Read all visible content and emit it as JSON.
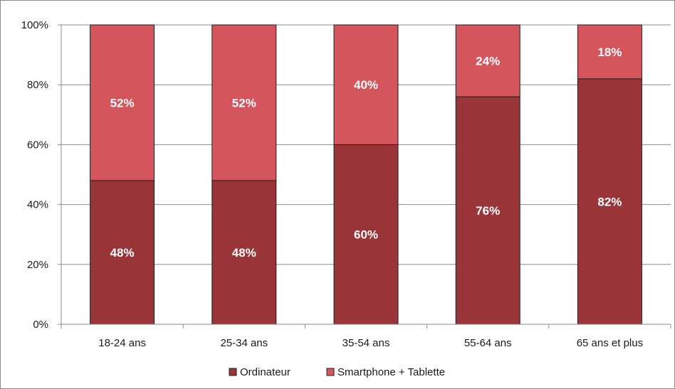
{
  "chart_data": {
    "type": "bar",
    "stacked": true,
    "categories": [
      "18-24 ans",
      "25-34 ans",
      "35-54 ans",
      "55-64 ans",
      "65 ans et plus"
    ],
    "series": [
      {
        "name": "Ordinateur",
        "values": [
          48,
          48,
          60,
          76,
          82
        ],
        "labels": [
          "48%",
          "48%",
          "60%",
          "76%",
          "82%"
        ],
        "color": "#993438"
      },
      {
        "name": "Smartphone + Tablette",
        "values": [
          52,
          52,
          40,
          24,
          18
        ],
        "labels": [
          "52%",
          "52%",
          "40%",
          "24%",
          "18%"
        ],
        "color": "#d4555c"
      }
    ],
    "y_ticks": [
      "0%",
      "20%",
      "40%",
      "60%",
      "80%",
      "100%"
    ],
    "ylim": [
      0,
      100
    ],
    "grid": true,
    "legend_position": "bottom",
    "title": "",
    "xlabel": "",
    "ylabel": ""
  }
}
